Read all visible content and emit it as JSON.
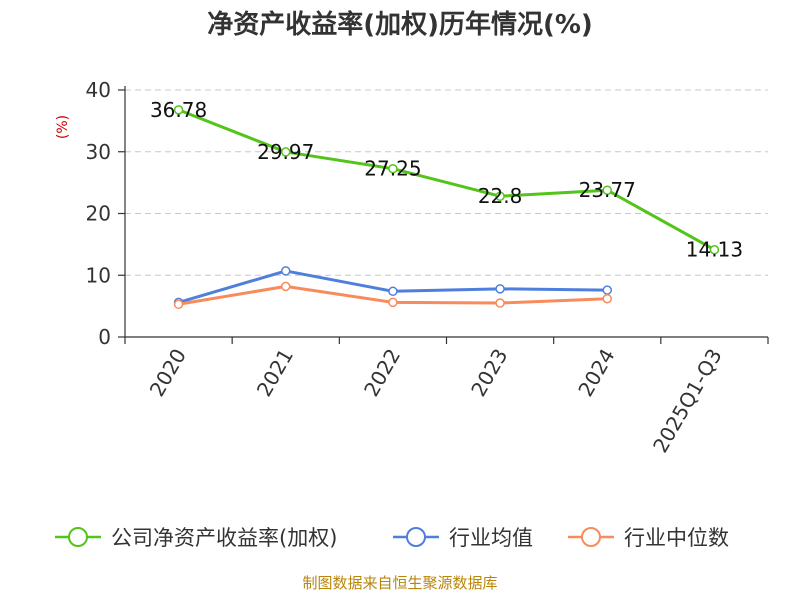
{
  "chart_data": {
    "type": "line",
    "title": "净资产收益率(加权)历年情况(%)",
    "ylabel": "(%)",
    "xlabel": "",
    "categories": [
      "2020",
      "2021",
      "2022",
      "2023",
      "2024",
      "2025Q1-Q3"
    ],
    "ylim": [
      0,
      40
    ],
    "yticks": [
      0,
      10,
      20,
      30,
      40
    ],
    "grid": true,
    "legend_position": "bottom",
    "series": [
      {
        "name": "公司净资产收益率(加权)",
        "color": "#52c41a",
        "values": [
          36.78,
          29.97,
          27.25,
          22.8,
          23.77,
          14.13
        ],
        "labels": [
          "36.78",
          "29.97",
          "27.25",
          "22.8",
          "23.77",
          "14.13"
        ]
      },
      {
        "name": "行业均值",
        "color": "#4f7fdc",
        "values": [
          5.6,
          10.7,
          7.4,
          7.8,
          7.6,
          null
        ]
      },
      {
        "name": "行业中位数",
        "color": "#f78b5c",
        "values": [
          5.3,
          8.2,
          5.6,
          5.5,
          6.2,
          null
        ]
      }
    ],
    "source": "制图数据来自恒生聚源数据库"
  }
}
